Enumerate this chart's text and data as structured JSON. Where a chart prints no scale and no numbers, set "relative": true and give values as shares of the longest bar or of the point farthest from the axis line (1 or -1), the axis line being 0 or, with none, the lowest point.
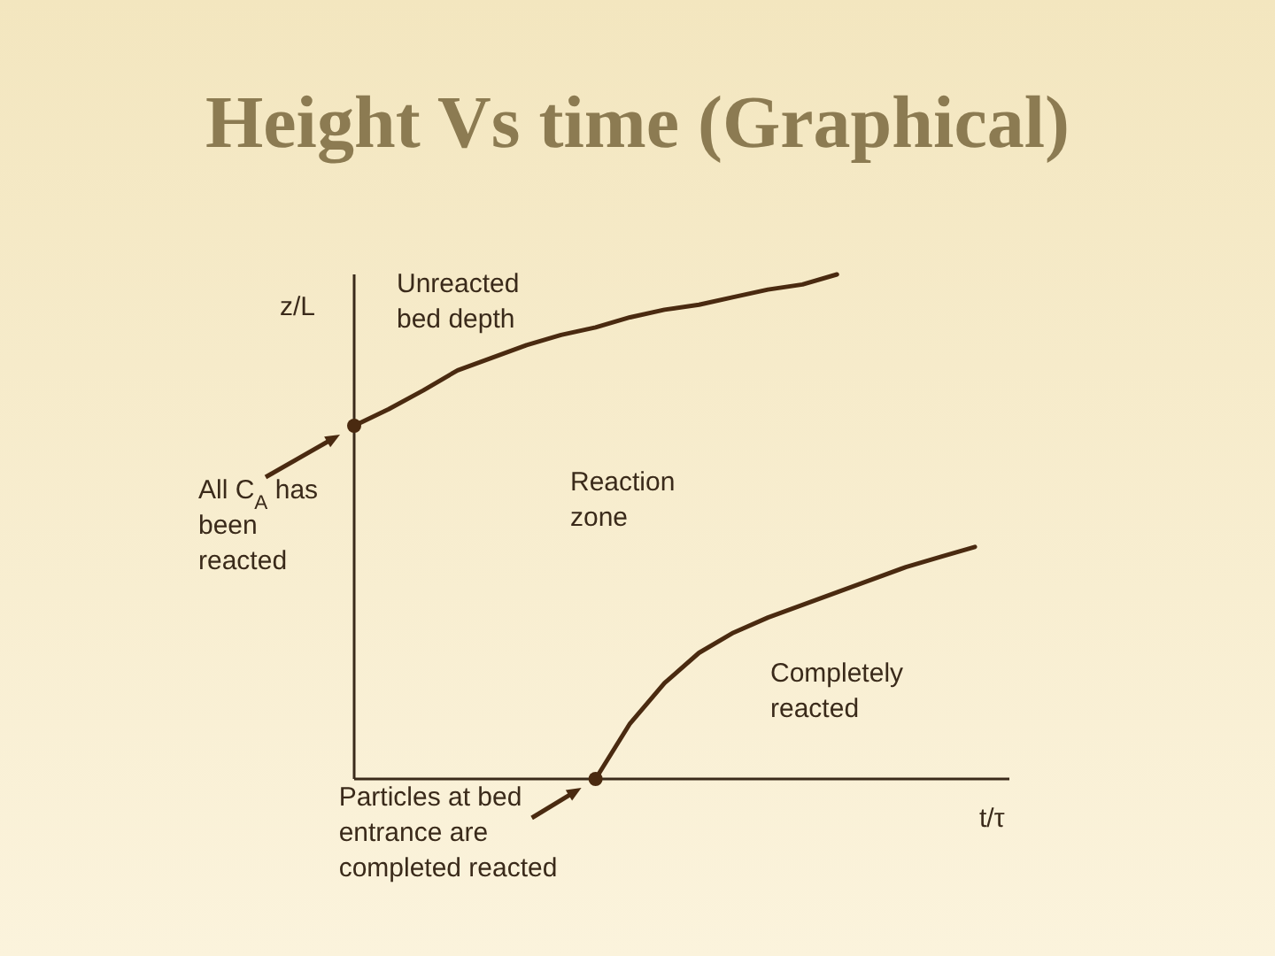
{
  "chart_data": {
    "type": "line",
    "title": "Height Vs time (Graphical)",
    "xlabel": "t/τ",
    "ylabel": "z/L",
    "relative": true,
    "categories": [
      null,
      null,
      null,
      null,
      null,
      null,
      null,
      null,
      null,
      null,
      null,
      null,
      null,
      null,
      null,
      null,
      null,
      null,
      null,
      null
    ],
    "series": [
      {
        "color": "#4a2a10",
        "values": [
          0.7,
          0.733,
          0.77,
          0.81,
          0.835,
          0.86,
          0.88,
          0.895,
          0.915,
          0.93,
          0.94,
          0.955,
          0.97,
          0.98,
          1.0,
          null,
          null,
          null,
          null,
          null
        ]
      },
      {
        "color": "#4a2a10",
        "values": [
          null,
          null,
          null,
          null,
          null,
          null,
          null,
          0,
          0.11,
          0.19,
          0.25,
          0.29,
          0.32,
          0.345,
          0.37,
          0.395,
          0.42,
          0.44,
          0.46,
          null
        ]
      }
    ],
    "annotations": [
      "Unreacted bed depth",
      "Reaction zone",
      "Completely reacted",
      "All C$_{A}$ has been reacted",
      "Particles at bed entrance are completed reacted"
    ]
  }
}
